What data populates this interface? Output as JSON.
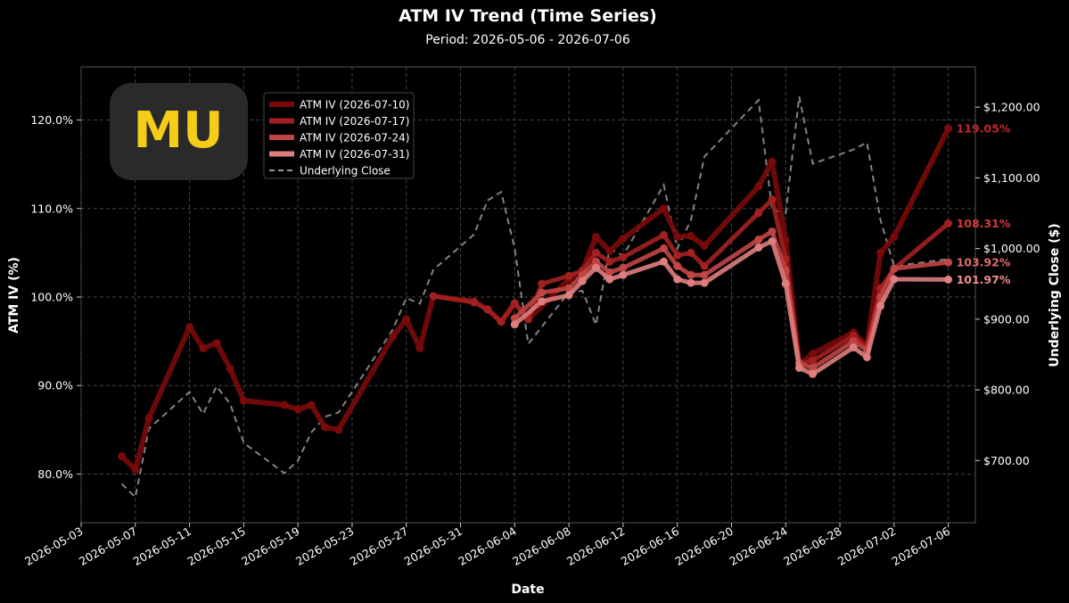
{
  "chart_data": {
    "type": "line",
    "title": "ATM IV Trend (Time Series)",
    "subtitle": "Period: 2026-05-06 - 2026-07-06",
    "xlabel": "Date",
    "ylabel": "ATM IV (%)",
    "y2label": "Underlying Close ($)",
    "ylim": [
      74.5,
      126
    ],
    "y2lim": [
      612,
      1257
    ],
    "xlim": [
      "2026-05-03",
      "2026-07-08"
    ],
    "grid": true,
    "legend_position": "top-left",
    "logo_text": "MU",
    "x_ticks": [
      "2026-05-03",
      "2026-05-07",
      "2026-05-11",
      "2026-05-15",
      "2026-05-19",
      "2026-05-23",
      "2026-05-27",
      "2026-05-31",
      "2026-06-04",
      "2026-06-08",
      "2026-06-12",
      "2026-06-16",
      "2026-06-20",
      "2026-06-24",
      "2026-06-28",
      "2026-07-02",
      "2026-07-06"
    ],
    "y_ticks": [
      80,
      90,
      100,
      110,
      120
    ],
    "y_tick_labels": [
      "80.0%",
      "90.0%",
      "100.0%",
      "110.0%",
      "120.0%"
    ],
    "y2_ticks": [
      700,
      800,
      900,
      1000,
      1100,
      1200
    ],
    "y2_tick_labels": [
      "$700.00",
      "$800.00",
      "$900.00",
      "$1,000.00",
      "$1,100.00",
      "$1,200.00"
    ],
    "series": [
      {
        "name": "ATM IV (2026-07-10)",
        "color": "#7a0a0a",
        "end_label": "119.05%",
        "end_label_color": "#c0282a",
        "points": [
          [
            "2026-05-06",
            82.0
          ],
          [
            "2026-05-07",
            80.5
          ],
          [
            "2026-05-08",
            86.3
          ],
          [
            "2026-05-11",
            96.6
          ],
          [
            "2026-05-12",
            94.2
          ],
          [
            "2026-05-13",
            94.8
          ],
          [
            "2026-05-14",
            91.9
          ],
          [
            "2026-05-15",
            88.3
          ],
          [
            "2026-05-18",
            87.8
          ],
          [
            "2026-05-19",
            87.3
          ],
          [
            "2026-05-20",
            87.8
          ],
          [
            "2026-05-21",
            85.3
          ],
          [
            "2026-05-22",
            85.0
          ],
          [
            "2026-05-26",
            95.5
          ],
          [
            "2026-05-27",
            97.5
          ],
          [
            "2026-05-28",
            94.2
          ],
          [
            "2026-05-29",
            100.1
          ],
          [
            "2026-06-01",
            99.5
          ],
          [
            "2026-06-02",
            98.6
          ],
          [
            "2026-06-03",
            97.2
          ],
          [
            "2026-06-04",
            99.3
          ],
          [
            "2026-06-05",
            97.5
          ],
          [
            "2026-06-08",
            102.0
          ],
          [
            "2026-06-09",
            103.0
          ],
          [
            "2026-06-10",
            106.8
          ],
          [
            "2026-06-11",
            105.2
          ],
          [
            "2026-06-12",
            106.6
          ],
          [
            "2026-06-15",
            110.0
          ],
          [
            "2026-06-16",
            106.8
          ],
          [
            "2026-06-17",
            106.9
          ],
          [
            "2026-06-18",
            105.8
          ],
          [
            "2026-06-22",
            112.5
          ],
          [
            "2026-06-23",
            115.3
          ],
          [
            "2026-06-24",
            106.4
          ],
          [
            "2026-06-25",
            92.4
          ],
          [
            "2026-06-26",
            93.6
          ],
          [
            "2026-06-29",
            96.0
          ],
          [
            "2026-06-30",
            94.5
          ],
          [
            "2026-07-01",
            105.0
          ],
          [
            "2026-07-02",
            106.8
          ],
          [
            "2026-07-06",
            119.05
          ]
        ]
      },
      {
        "name": "ATM IV (2026-07-17)",
        "color": "#a32020",
        "end_label": "108.31%",
        "end_label_color": "#d63a3a",
        "points": [
          [
            "2026-05-29",
            100.1
          ],
          [
            "2026-06-01",
            99.4
          ],
          [
            "2026-06-02",
            98.6
          ],
          [
            "2026-06-03",
            97.2
          ],
          [
            "2026-06-04",
            99.3
          ],
          [
            "2026-06-05",
            97.5
          ],
          [
            "2026-06-06",
            101.5
          ],
          [
            "2026-06-08",
            102.4
          ],
          [
            "2026-06-09",
            103.0
          ],
          [
            "2026-06-10",
            105.0
          ],
          [
            "2026-06-11",
            104.0
          ],
          [
            "2026-06-12",
            104.5
          ],
          [
            "2026-06-15",
            107.0
          ],
          [
            "2026-06-16",
            104.7
          ],
          [
            "2026-06-17",
            105.0
          ],
          [
            "2026-06-18",
            103.5
          ],
          [
            "2026-06-22",
            109.5
          ],
          [
            "2026-06-23",
            111.0
          ],
          [
            "2026-06-24",
            104.3
          ],
          [
            "2026-06-25",
            92.5
          ],
          [
            "2026-06-26",
            92.8
          ],
          [
            "2026-06-29",
            95.6
          ],
          [
            "2026-06-30",
            94.3
          ],
          [
            "2026-07-01",
            101.0
          ],
          [
            "2026-07-02",
            103.2
          ],
          [
            "2026-07-06",
            108.31
          ]
        ]
      },
      {
        "name": "ATM IV (2026-07-24)",
        "color": "#c24545",
        "end_label": "103.92%",
        "end_label_color": "#e06b6b",
        "points": [
          [
            "2026-06-04",
            97.6
          ],
          [
            "2026-06-06",
            100.5
          ],
          [
            "2026-06-08",
            101.0
          ],
          [
            "2026-06-09",
            102.5
          ],
          [
            "2026-06-10",
            104.0
          ],
          [
            "2026-06-11",
            102.8
          ],
          [
            "2026-06-12",
            103.3
          ],
          [
            "2026-06-15",
            105.5
          ],
          [
            "2026-06-16",
            103.5
          ],
          [
            "2026-06-17",
            102.5
          ],
          [
            "2026-06-18",
            102.5
          ],
          [
            "2026-06-22",
            106.5
          ],
          [
            "2026-06-23",
            107.4
          ],
          [
            "2026-06-24",
            103.0
          ],
          [
            "2026-06-25",
            92.5
          ],
          [
            "2026-06-26",
            92.0
          ],
          [
            "2026-06-29",
            95.0
          ],
          [
            "2026-06-30",
            94.0
          ],
          [
            "2026-07-01",
            100.0
          ],
          [
            "2026-07-02",
            103.2
          ],
          [
            "2026-07-06",
            103.92
          ]
        ]
      },
      {
        "name": "ATM IV (2026-07-31)",
        "color": "#de7e7e",
        "end_label": "101.97%",
        "end_label_color": "#f08f8f",
        "points": [
          [
            "2026-06-04",
            96.9
          ],
          [
            "2026-06-06",
            99.5
          ],
          [
            "2026-06-08",
            100.2
          ],
          [
            "2026-06-09",
            101.8
          ],
          [
            "2026-06-10",
            103.3
          ],
          [
            "2026-06-11",
            102.0
          ],
          [
            "2026-06-12",
            102.5
          ],
          [
            "2026-06-15",
            104.0
          ],
          [
            "2026-06-16",
            102.0
          ],
          [
            "2026-06-17",
            101.6
          ],
          [
            "2026-06-18",
            101.6
          ],
          [
            "2026-06-22",
            105.6
          ],
          [
            "2026-06-23",
            106.3
          ],
          [
            "2026-06-24",
            101.5
          ],
          [
            "2026-06-25",
            92.0
          ],
          [
            "2026-06-26",
            91.3
          ],
          [
            "2026-06-29",
            94.3
          ],
          [
            "2026-06-30",
            93.2
          ],
          [
            "2026-07-01",
            99.0
          ],
          [
            "2026-07-02",
            102.0
          ],
          [
            "2026-07-06",
            101.97
          ]
        ]
      }
    ],
    "underlying": {
      "name": "Underlying Close",
      "color": "#9a9a9a",
      "points": [
        [
          "2026-05-06",
          667
        ],
        [
          "2026-05-07",
          648
        ],
        [
          "2026-05-08",
          745
        ],
        [
          "2026-05-11",
          797
        ],
        [
          "2026-05-12",
          766
        ],
        [
          "2026-05-13",
          805
        ],
        [
          "2026-05-14",
          780
        ],
        [
          "2026-05-15",
          725
        ],
        [
          "2026-05-18",
          682
        ],
        [
          "2026-05-19",
          700
        ],
        [
          "2026-05-20",
          740
        ],
        [
          "2026-05-21",
          762
        ],
        [
          "2026-05-22",
          768
        ],
        [
          "2026-05-26",
          885
        ],
        [
          "2026-05-27",
          930
        ],
        [
          "2026-05-28",
          922
        ],
        [
          "2026-05-29",
          970
        ],
        [
          "2026-06-01",
          1020
        ],
        [
          "2026-06-02",
          1068
        ],
        [
          "2026-06-03",
          1080
        ],
        [
          "2026-06-04",
          1000
        ],
        [
          "2026-06-05",
          865
        ],
        [
          "2026-06-08",
          938
        ],
        [
          "2026-06-09",
          940
        ],
        [
          "2026-06-10",
          892
        ],
        [
          "2026-06-11",
          1000
        ],
        [
          "2026-06-12",
          990
        ],
        [
          "2026-06-15",
          1090
        ],
        [
          "2026-06-16",
          1000
        ],
        [
          "2026-06-17",
          1040
        ],
        [
          "2026-06-18",
          1130
        ],
        [
          "2026-06-22",
          1210
        ],
        [
          "2026-06-23",
          1055
        ],
        [
          "2026-06-24",
          1050
        ],
        [
          "2026-06-25",
          1215
        ],
        [
          "2026-06-26",
          1120
        ],
        [
          "2026-06-29",
          1140
        ],
        [
          "2026-06-30",
          1150
        ],
        [
          "2026-07-01",
          1040
        ],
        [
          "2026-07-02",
          975
        ],
        [
          "2026-07-06",
          985
        ]
      ]
    }
  }
}
